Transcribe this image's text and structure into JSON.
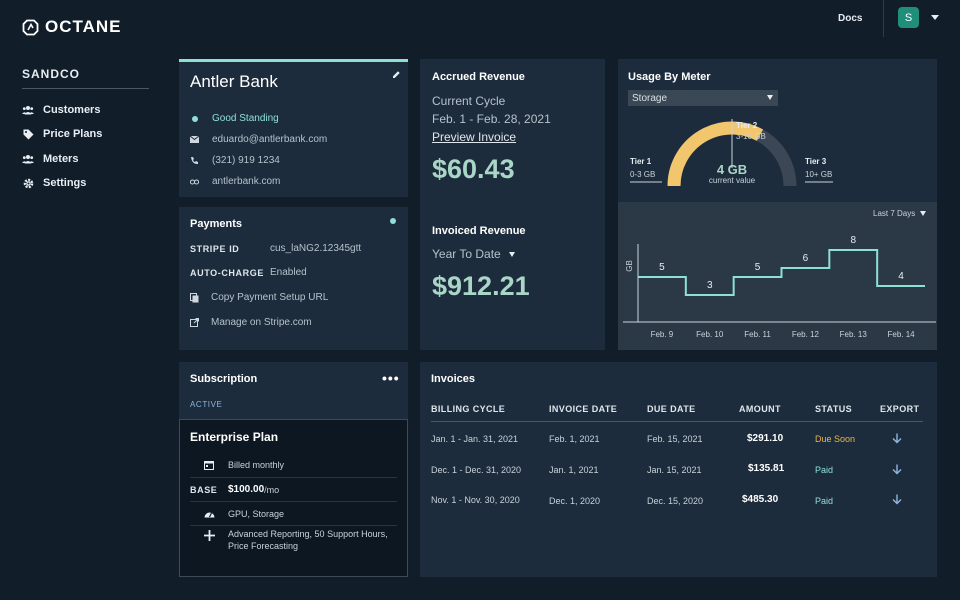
{
  "brand": {
    "name": "OCTANE"
  },
  "header": {
    "docs_label": "Docs",
    "avatar_initial": "S"
  },
  "sidebar": {
    "org": "SANDCO",
    "items": [
      {
        "label": "Customers",
        "icon": "users-icon"
      },
      {
        "label": "Price Plans",
        "icon": "tag-icon"
      },
      {
        "label": "Meters",
        "icon": "users-icon"
      },
      {
        "label": "Settings",
        "icon": "gear-icon"
      }
    ]
  },
  "customer": {
    "name": "Antler Bank",
    "status": "Good Standing",
    "email": "eduardo@antlerbank.com",
    "phone": "(321) 919 1234",
    "website": "antlerbank.com"
  },
  "payments": {
    "title": "Payments",
    "stripe_label": "STRIPE ID",
    "stripe_value": "cus_laNG2.12345gtt",
    "autocharge_label": "AUTO-CHARGE",
    "autocharge_value": "Enabled",
    "copy_link": "Copy Payment Setup URL",
    "manage_link": "Manage on Stripe.com"
  },
  "subscription": {
    "title": "Subscription",
    "status": "ACTIVE",
    "plan_name": "Enterprise Plan",
    "billing": "Billed monthly",
    "base_label": "BASE",
    "base_price": "$100.00",
    "base_unit": "/mo",
    "meters": "GPU, Storage",
    "features": "Advanced Reporting, 50 Support Hours, Price Forecasting"
  },
  "accrued": {
    "title": "Accrued Revenue",
    "cycle_label": "Current Cycle",
    "cycle_range": "Feb. 1 - Feb. 28, 2021",
    "preview_link": "Preview Invoice",
    "amount": "$60.43"
  },
  "invoiced": {
    "title": "Invoiced Revenue",
    "period": "Year To Date",
    "amount": "$912.21"
  },
  "usage": {
    "title": "Usage By Meter",
    "selected_meter": "Storage",
    "gauge": {
      "value_label": "4 GB",
      "value_caption": "current value",
      "fill_fraction": 0.66,
      "tier1_name": "Tier 1",
      "tier1_range": "0-3 GB",
      "tier2_name": "Tier 2",
      "tier2_range": "3-10 GB",
      "tier3_name": "Tier 3",
      "tier3_range": "10+ GB"
    },
    "period": "Last 7 Days",
    "colors": {
      "line": "#8ee0d5",
      "gauge_fill": "#f2c66d",
      "gauge_track": "#3b4755"
    }
  },
  "chart_data": {
    "type": "line",
    "step": true,
    "ylabel": "GB",
    "x": [
      "Feb. 9",
      "Feb. 10",
      "Feb. 11",
      "Feb. 12",
      "Feb. 13",
      "Feb. 14"
    ],
    "values": [
      5,
      3,
      5,
      6,
      8,
      4
    ],
    "data_labels": [
      "5",
      "3",
      "5",
      "6",
      "8",
      "4"
    ],
    "ylim": [
      0,
      10
    ],
    "grid": false
  },
  "invoices": {
    "title": "Invoices",
    "columns": [
      "BILLING CYCLE",
      "INVOICE DATE",
      "DUE DATE",
      "AMOUNT",
      "STATUS",
      "EXPORT"
    ],
    "rows": [
      {
        "cycle": "Jan. 1 - Jan. 31, 2021",
        "invoice_date": "Feb. 1, 2021",
        "due_date": "Feb. 15, 2021",
        "amount": "$291.10",
        "status": "Due Soon"
      },
      {
        "cycle": "Dec. 1 - Dec. 31, 2020",
        "invoice_date": "Jan. 1, 2021",
        "due_date": "Jan. 15, 2021",
        "amount": "$135.81",
        "status": "Paid"
      },
      {
        "cycle": "Nov. 1 - Nov. 30, 2020",
        "invoice_date": "Dec. 1, 2020",
        "due_date": "Dec. 15, 2020",
        "amount": "$485.30",
        "status": "Paid"
      }
    ]
  }
}
